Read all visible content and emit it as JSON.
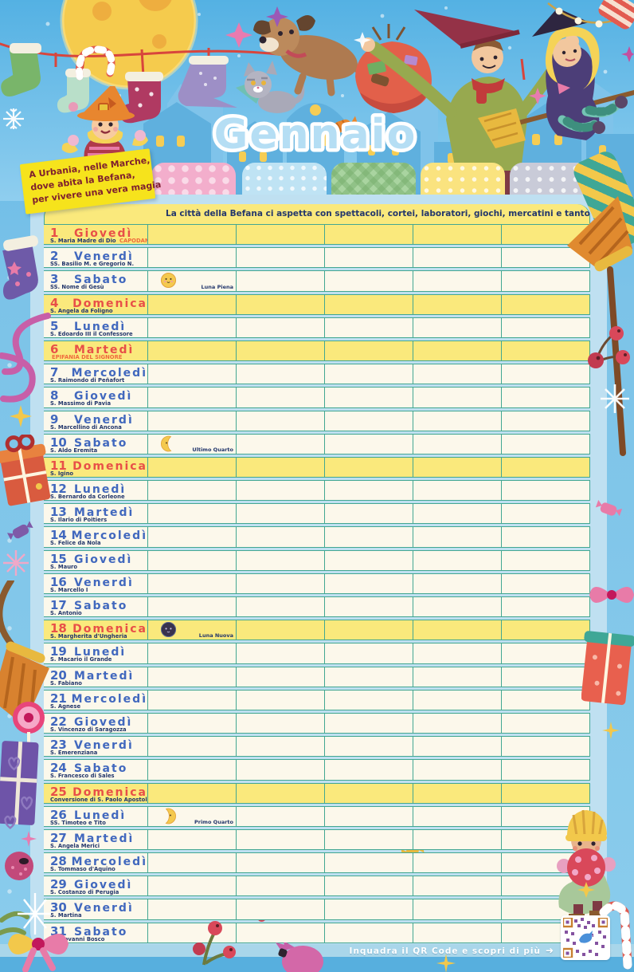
{
  "title": "Gennaio",
  "note": {
    "line1": "A Urbania, nelle Marche,",
    "line2": "dove abita la Befana,",
    "line3": "per vivere una vera magia"
  },
  "banner": "La città della Befana ci aspetta con spettacoli, cortei, laboratori, giochi, mercatini e tanto divertimento",
  "name_tabs": {
    "count": 5,
    "labels": [
      "",
      "",
      "",
      "",
      ""
    ],
    "colors": [
      "#f3aecc",
      "#bfe3f4",
      "#a9d4a0",
      "#fae37f",
      "#c9cbd8"
    ]
  },
  "colors": {
    "highlight_row": "#fae97c",
    "row_bg": "#fcf8eb",
    "grid_line": "#42a792",
    "weekday_blue": "#4168be",
    "sunday_red": "#e84f48",
    "saint_navy": "#23376c",
    "holiday_orange": "#ef6a3c"
  },
  "days": [
    {
      "num": "1",
      "weekday": "Giovedì",
      "saint": "S. Maria Madre di Dio",
      "holiday": "CAPODANNO",
      "highlight": true
    },
    {
      "num": "2",
      "weekday": "Venerdì",
      "saint": "SS. Basilio M. e Gregorio N."
    },
    {
      "num": "3",
      "weekday": "Sabato",
      "saint": "SS. Nome di Gesù",
      "moon": {
        "type": "full",
        "label": "Luna Piena"
      }
    },
    {
      "num": "4",
      "weekday": "Domenica",
      "saint": "S. Angela da Foligno",
      "highlight": true
    },
    {
      "num": "5",
      "weekday": "Lunedì",
      "saint": "S. Edoardo III il Confessore"
    },
    {
      "num": "6",
      "weekday": "Martedì",
      "saint": "",
      "holiday": "EPIFANIA DEL SIGNORE",
      "highlight": true
    },
    {
      "num": "7",
      "weekday": "Mercoledì",
      "saint": "S. Raimondo di Peñafort"
    },
    {
      "num": "8",
      "weekday": "Giovedì",
      "saint": "S. Massimo di Pavia"
    },
    {
      "num": "9",
      "weekday": "Venerdì",
      "saint": "S. Marcellino di Ancona"
    },
    {
      "num": "10",
      "weekday": "Sabato",
      "saint": "S. Aldo Eremita",
      "moon": {
        "type": "last-quarter",
        "label": "Ultimo Quarto"
      }
    },
    {
      "num": "11",
      "weekday": "Domenica",
      "saint": "S. Igino",
      "highlight": true
    },
    {
      "num": "12",
      "weekday": "Lunedì",
      "saint": "S. Bernardo da Corleone"
    },
    {
      "num": "13",
      "weekday": "Martedì",
      "saint": "S. Ilario di Poitiers"
    },
    {
      "num": "14",
      "weekday": "Mercoledì",
      "saint": "S. Felice da Nola"
    },
    {
      "num": "15",
      "weekday": "Giovedì",
      "saint": "S. Mauro"
    },
    {
      "num": "16",
      "weekday": "Venerdì",
      "saint": "S. Marcello I"
    },
    {
      "num": "17",
      "weekday": "Sabato",
      "saint": "S. Antonio"
    },
    {
      "num": "18",
      "weekday": "Domenica",
      "saint": "S. Margherita d'Ungheria",
      "highlight": true,
      "moon": {
        "type": "new",
        "label": "Luna Nuova"
      }
    },
    {
      "num": "19",
      "weekday": "Lunedì",
      "saint": "S. Macario il Grande"
    },
    {
      "num": "20",
      "weekday": "Martedì",
      "saint": "S. Fabiano"
    },
    {
      "num": "21",
      "weekday": "Mercoledì",
      "saint": "S. Agnese"
    },
    {
      "num": "22",
      "weekday": "Giovedì",
      "saint": "S. Vincenzo di Saragozza"
    },
    {
      "num": "23",
      "weekday": "Venerdì",
      "saint": "S. Emerenziana"
    },
    {
      "num": "24",
      "weekday": "Sabato",
      "saint": "S. Francesco di Sales"
    },
    {
      "num": "25",
      "weekday": "Domenica",
      "saint": "Conversione di S. Paolo Apostolo",
      "highlight": true
    },
    {
      "num": "26",
      "weekday": "Lunedì",
      "saint": "SS. Timoteo e Tito",
      "moon": {
        "type": "first-quarter",
        "label": "Primo Quarto"
      }
    },
    {
      "num": "27",
      "weekday": "Martedì",
      "saint": "S. Angela Merici"
    },
    {
      "num": "28",
      "weekday": "Mercoledì",
      "saint": "S. Tommaso d'Aquino"
    },
    {
      "num": "29",
      "weekday": "Giovedì",
      "saint": "S. Costanzo di Perugia"
    },
    {
      "num": "30",
      "weekday": "Venerdì",
      "saint": "S. Martina"
    },
    {
      "num": "31",
      "weekday": "Sabato",
      "saint": "S. Giovanni Bosco"
    }
  ],
  "footer": {
    "qr_caption": "Inquadra il QR Code e scopri di più",
    "arrow": "➜"
  }
}
